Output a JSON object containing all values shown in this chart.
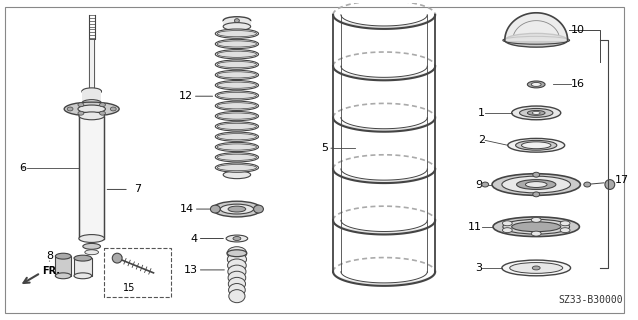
{
  "bg_color": "#ffffff",
  "line_color": "#444444",
  "fill_light": "#e8e8e8",
  "fill_mid": "#cccccc",
  "fill_dark": "#aaaaaa",
  "diagram_code": "SZ33-B30000",
  "figsize": [
    6.38,
    3.2
  ],
  "dpi": 100
}
